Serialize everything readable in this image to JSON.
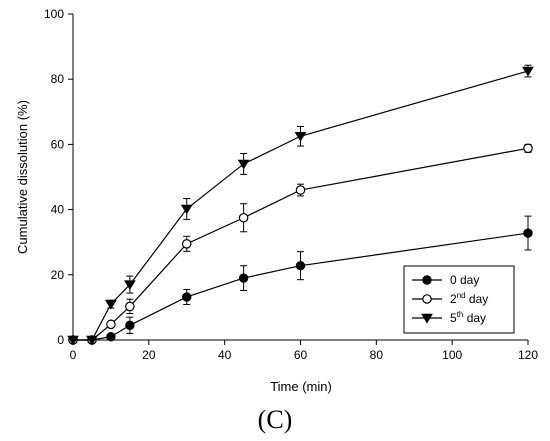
{
  "chart_data": {
    "type": "line",
    "xlabel": "Time (min)",
    "ylabel": "Cumulative dissolution (%)",
    "xlim": [
      0,
      120
    ],
    "ylim": [
      0,
      100
    ],
    "xticks": [
      0,
      20,
      40,
      60,
      80,
      100,
      120
    ],
    "yticks": [
      0,
      20,
      40,
      60,
      80,
      100
    ],
    "grid": false,
    "legend_position": "bottom-right",
    "panel_label": "(C)",
    "series": [
      {
        "legend_base": "0 day",
        "legend_sup": "",
        "legend_suffix": "",
        "marker": "filled-circle",
        "points": [
          {
            "x": 0,
            "y": 0,
            "err": 0
          },
          {
            "x": 5,
            "y": 0,
            "err": 0
          },
          {
            "x": 10,
            "y": 1.0,
            "err": 0.6
          },
          {
            "x": 15,
            "y": 4.5,
            "err": 2.5
          },
          {
            "x": 30,
            "y": 13.2,
            "err": 2.3
          },
          {
            "x": 45,
            "y": 19.0,
            "err": 3.8
          },
          {
            "x": 60,
            "y": 22.8,
            "err": 4.3
          },
          {
            "x": 120,
            "y": 32.8,
            "err": 5.2
          }
        ]
      },
      {
        "legend_base": "2",
        "legend_sup": "nd",
        "legend_suffix": " day",
        "marker": "open-circle",
        "points": [
          {
            "x": 0,
            "y": 0,
            "err": 0
          },
          {
            "x": 5,
            "y": 0,
            "err": 0
          },
          {
            "x": 10,
            "y": 4.8,
            "err": 0.8
          },
          {
            "x": 15,
            "y": 10.3,
            "err": 2.2
          },
          {
            "x": 30,
            "y": 29.5,
            "err": 2.3
          },
          {
            "x": 45,
            "y": 37.5,
            "err": 4.3
          },
          {
            "x": 60,
            "y": 46.0,
            "err": 1.8
          },
          {
            "x": 120,
            "y": 58.8,
            "err": 1.2
          }
        ]
      },
      {
        "legend_base": "5",
        "legend_sup": "th",
        "legend_suffix": " day",
        "marker": "filled-triangle-down",
        "points": [
          {
            "x": 0,
            "y": 0,
            "err": 0
          },
          {
            "x": 5,
            "y": 0,
            "err": 0
          },
          {
            "x": 10,
            "y": 11.0,
            "err": 1.2
          },
          {
            "x": 15,
            "y": 17.0,
            "err": 2.6
          },
          {
            "x": 30,
            "y": 40.2,
            "err": 3.2
          },
          {
            "x": 45,
            "y": 54.0,
            "err": 3.2
          },
          {
            "x": 60,
            "y": 62.5,
            "err": 3.0
          },
          {
            "x": 120,
            "y": 82.5,
            "err": 1.8
          }
        ]
      }
    ]
  }
}
